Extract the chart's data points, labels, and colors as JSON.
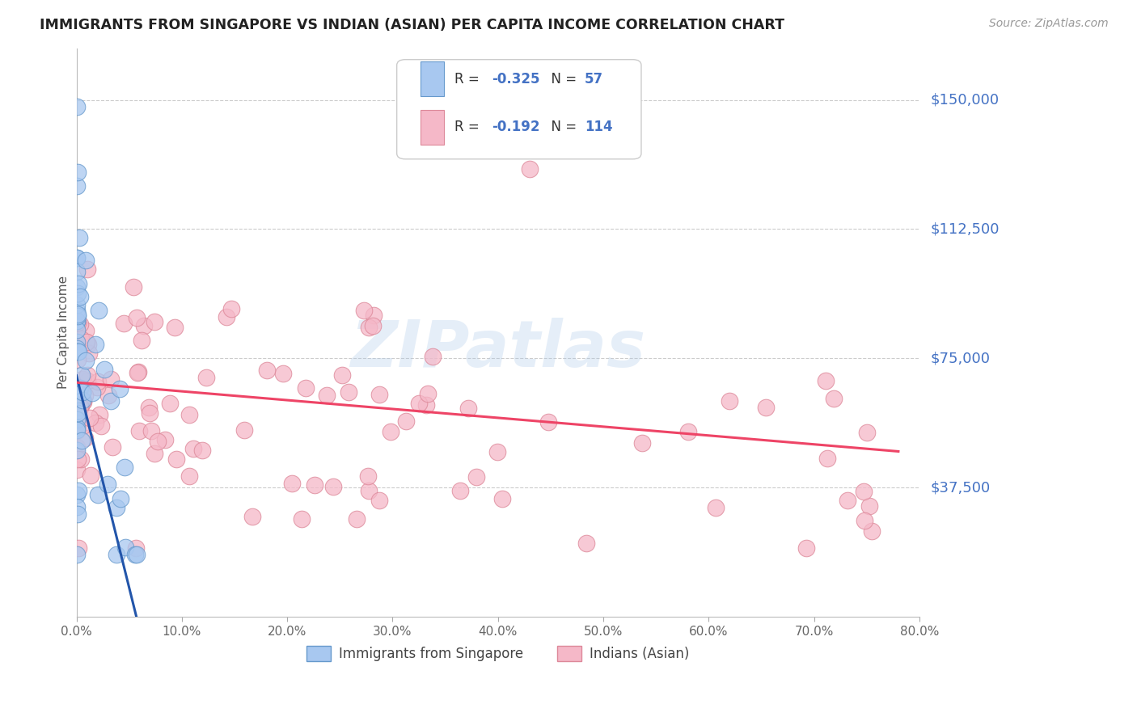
{
  "title": "IMMIGRANTS FROM SINGAPORE VS INDIAN (ASIAN) PER CAPITA INCOME CORRELATION CHART",
  "source": "Source: ZipAtlas.com",
  "ylabel": "Per Capita Income",
  "watermark": "ZIPatlas",
  "singapore_color": "#a8c8f0",
  "indian_color": "#f5b8c8",
  "singapore_edge": "#6699cc",
  "indian_edge": "#dd8899",
  "singapore_line_color": "#2255aa",
  "indian_line_color": "#ee4466",
  "label_color": "#4472c4",
  "ytick_positions": [
    150000,
    112500,
    75000,
    37500
  ],
  "ytick_labels": [
    "$150,000",
    "$112,500",
    "$75,000",
    "$37,500"
  ],
  "xtick_vals": [
    0,
    10,
    20,
    30,
    40,
    50,
    60,
    70,
    80
  ],
  "xtick_labels": [
    "0.0%",
    "10.0%",
    "20.0%",
    "30.0%",
    "40.0%",
    "50.0%",
    "60.0%",
    "70.0%",
    "80.0%"
  ],
  "xlim": [
    0,
    80
  ],
  "ylim": [
    0,
    165000
  ],
  "singapore_R": -0.325,
  "singapore_N": 57,
  "indian_R": -0.192,
  "indian_N": 114,
  "sing_line": [
    [
      0.0,
      6.5
    ],
    [
      70000,
      -10000
    ]
  ],
  "sing_line_dash": [
    [
      6.5,
      10.5
    ],
    [
      -10000,
      -40000
    ]
  ],
  "ind_line": [
    [
      0.0,
      78.0
    ],
    [
      68000,
      48000
    ]
  ]
}
